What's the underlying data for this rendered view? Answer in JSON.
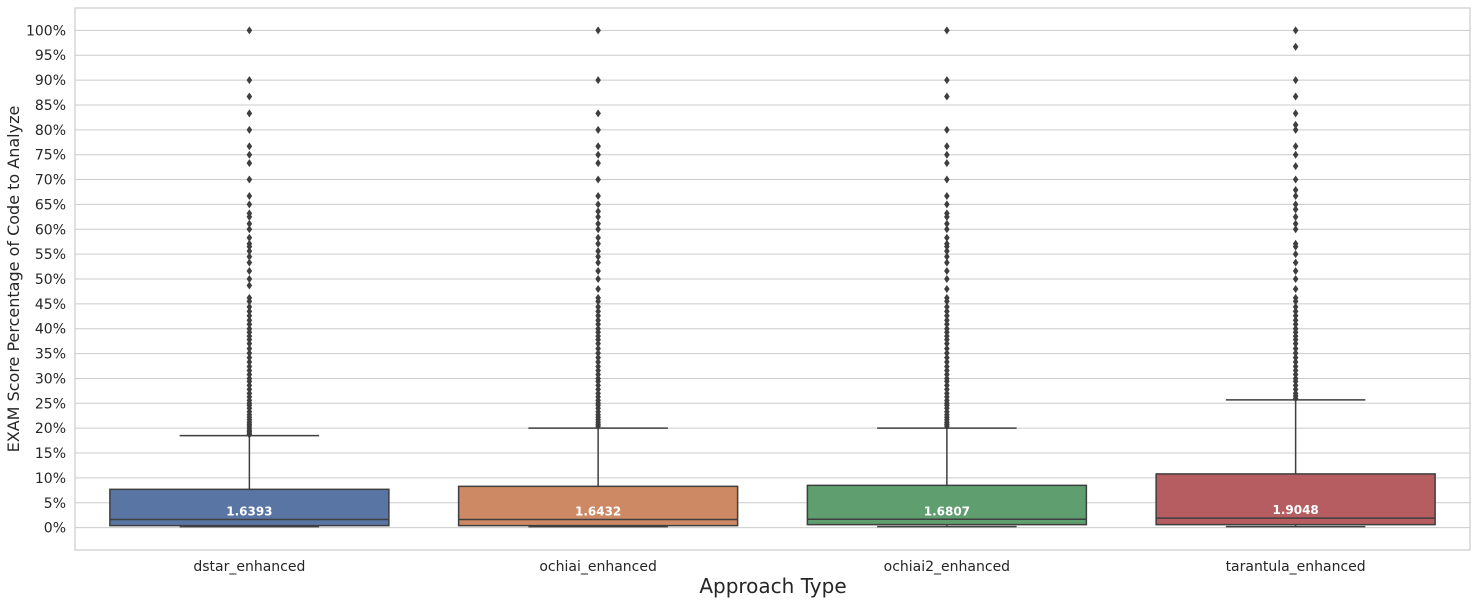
{
  "chart_data": {
    "type": "box",
    "title": "",
    "xlabel": "Approach Type",
    "ylabel": "EXAM Score Percentage of Code to Analyze",
    "ylim": [
      -4.5,
      104.5
    ],
    "grid": true,
    "y_ticks": [
      "0%",
      "5%",
      "10%",
      "15%",
      "20%",
      "25%",
      "30%",
      "35%",
      "40%",
      "45%",
      "50%",
      "55%",
      "60%",
      "65%",
      "70%",
      "75%",
      "80%",
      "85%",
      "90%",
      "95%",
      "100%"
    ],
    "categories": [
      "dstar_enhanced",
      "ochiai_enhanced",
      "ochiai2_enhanced",
      "tarantula_enhanced"
    ],
    "boxes": [
      {
        "category": "dstar_enhanced",
        "color": "#5975a4",
        "whisker_low": 0.2,
        "q1": 0.4,
        "median": 1.6393,
        "q3": 7.7,
        "whisker_high": 18.5,
        "median_label": "1.6393",
        "outliers": [
          18.7,
          19.0,
          19.3,
          19.6,
          20.0,
          20.4,
          20.8,
          21.2,
          21.7,
          22.2,
          22.7,
          23.3,
          24.0,
          24.6,
          25.0,
          25.6,
          26.3,
          27.0,
          27.8,
          28.6,
          29.4,
          30.0,
          30.8,
          31.6,
          32.4,
          33.3,
          34.2,
          35.1,
          36.0,
          37.0,
          37.8,
          38.5,
          39.3,
          40.0,
          40.9,
          41.7,
          42.6,
          43.5,
          44.4,
          45.5,
          46.2,
          48.7,
          50.0,
          51.6,
          53.3,
          54.5,
          55.6,
          56.5,
          57.1,
          58.3,
          60.0,
          61.1,
          62.5,
          63.2,
          65.0,
          66.7,
          70.0,
          73.3,
          75.0,
          76.7,
          80.0,
          83.3,
          86.7,
          90.0,
          100.0
        ]
      },
      {
        "category": "ochiai_enhanced",
        "color": "#cc8963",
        "whisker_low": 0.2,
        "q1": 0.4,
        "median": 1.6432,
        "q3": 8.3,
        "whisker_high": 20.0,
        "median_label": "1.6432",
        "outliers": [
          20.4,
          20.8,
          21.2,
          21.7,
          22.2,
          22.7,
          23.3,
          24.0,
          24.6,
          25.0,
          25.6,
          26.3,
          27.0,
          27.8,
          28.6,
          29.4,
          30.0,
          30.8,
          31.6,
          32.4,
          33.3,
          34.2,
          35.1,
          36.0,
          37.0,
          37.8,
          38.5,
          39.3,
          40.0,
          40.9,
          41.7,
          42.6,
          43.5,
          44.4,
          45.5,
          46.2,
          48.0,
          50.0,
          51.6,
          53.3,
          54.5,
          55.6,
          57.1,
          58.3,
          60.0,
          61.1,
          62.5,
          63.6,
          65.0,
          66.7,
          70.0,
          73.3,
          75.0,
          76.7,
          80.0,
          83.3,
          90.0,
          100.0
        ]
      },
      {
        "category": "ochiai2_enhanced",
        "color": "#5f9e6e",
        "whisker_low": 0.2,
        "q1": 0.6,
        "median": 1.6807,
        "q3": 8.5,
        "whisker_high": 20.0,
        "median_label": "1.6807",
        "outliers": [
          20.4,
          20.8,
          21.2,
          21.7,
          22.2,
          22.7,
          23.3,
          24.0,
          24.6,
          25.0,
          25.6,
          26.3,
          27.0,
          27.8,
          28.6,
          29.4,
          30.0,
          30.8,
          31.6,
          32.4,
          33.3,
          34.2,
          35.1,
          36.0,
          37.0,
          37.8,
          38.5,
          39.3,
          40.0,
          40.9,
          41.7,
          42.6,
          43.5,
          44.4,
          45.5,
          46.2,
          48.0,
          50.0,
          51.6,
          53.3,
          54.5,
          55.6,
          56.5,
          57.1,
          58.3,
          60.0,
          61.1,
          62.5,
          63.2,
          65.0,
          66.7,
          70.0,
          73.3,
          75.0,
          76.7,
          80.0,
          86.7,
          90.0,
          100.0
        ]
      },
      {
        "category": "tarantula_enhanced",
        "color": "#b55d60",
        "whisker_low": 0.2,
        "q1": 0.6,
        "median": 1.9048,
        "q3": 10.8,
        "whisker_high": 25.7,
        "median_label": "1.9048",
        "outliers": [
          26.0,
          26.5,
          27.0,
          27.8,
          28.6,
          29.4,
          30.0,
          30.8,
          31.6,
          32.4,
          33.3,
          34.2,
          35.1,
          36.0,
          37.0,
          37.8,
          38.5,
          39.3,
          40.0,
          40.9,
          41.7,
          42.6,
          43.5,
          44.4,
          45.5,
          46.2,
          48.0,
          50.0,
          51.6,
          53.3,
          55.0,
          56.5,
          57.1,
          60.0,
          61.1,
          62.5,
          64.0,
          65.0,
          66.7,
          67.9,
          70.0,
          72.7,
          75.0,
          76.7,
          80.0,
          81.0,
          83.3,
          86.7,
          90.0,
          96.7,
          100.0
        ]
      }
    ]
  }
}
